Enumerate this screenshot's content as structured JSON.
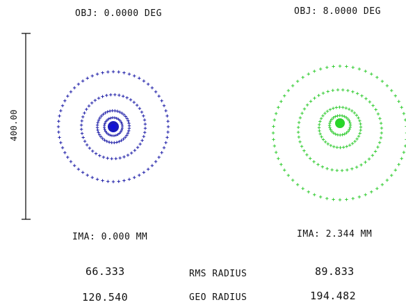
{
  "fields": [
    {
      "obj_label": "OBJ: 0.0000 DEG",
      "ima_label": "IMA: 0.000 MM",
      "rms_radius": "66.333",
      "geo_radius": "120.540",
      "color": "#1f1fa8",
      "core_color": "#1010d8"
    },
    {
      "obj_label": "OBJ: 8.0000 DEG",
      "ima_label": "IMA: 2.344 MM",
      "rms_radius": "89.833",
      "geo_radius": "194.482",
      "color": "#33cc33",
      "core_color": "#22dd22"
    }
  ],
  "row_labels": {
    "rms": "RMS RADIUS",
    "geo": "GEO RADIUS"
  },
  "scale": {
    "label": "400.00"
  }
}
